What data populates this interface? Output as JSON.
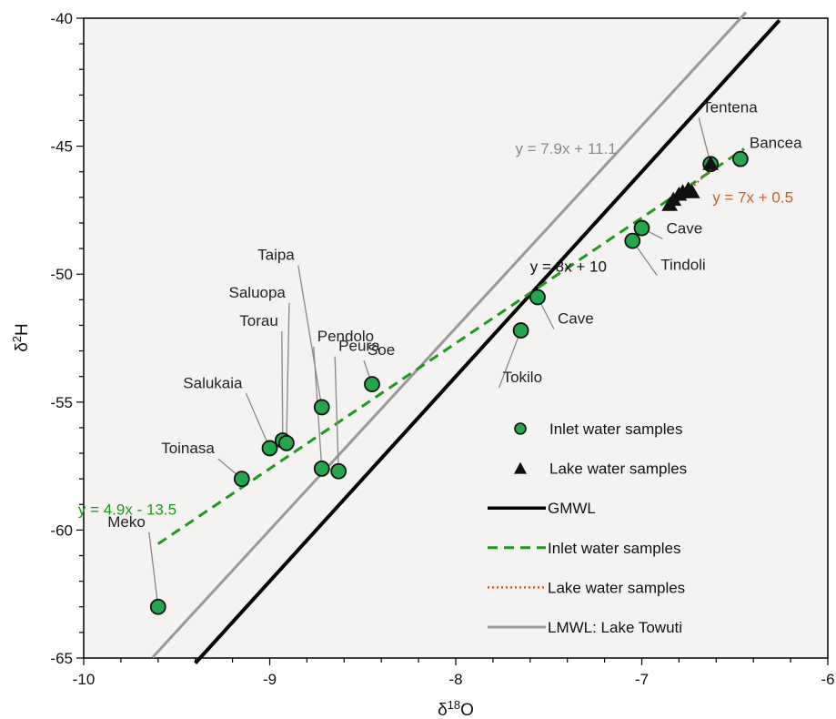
{
  "chart_data": {
    "type": "scatter",
    "xlabel": "δ18O",
    "ylabel": "δ2H",
    "xlim": [
      -10,
      -6
    ],
    "ylim": [
      -65,
      -40
    ],
    "xticks": [
      -10,
      -9,
      -8,
      -7,
      -6
    ],
    "yticks": [
      -65,
      -60,
      -55,
      -50,
      -45,
      -40
    ],
    "grid": false,
    "legend_position": "bottom-right",
    "inlet_points": [
      {
        "label": "Meko",
        "x": -9.6,
        "y": -63.0
      },
      {
        "label": "Toinasa",
        "x": -9.15,
        "y": -58.0
      },
      {
        "label": "Salukaia",
        "x": -9.0,
        "y": -56.8
      },
      {
        "label": "Torau",
        "x": -8.93,
        "y": -56.5
      },
      {
        "label": "Saluopa",
        "x": -8.91,
        "y": -56.6
      },
      {
        "label": "Taipa",
        "x": -8.72,
        "y": -55.2
      },
      {
        "label": "Pendolo",
        "x": -8.72,
        "y": -57.6
      },
      {
        "label": "Peura",
        "x": -8.63,
        "y": -57.7
      },
      {
        "label": "Soe",
        "x": -8.45,
        "y": -54.3
      },
      {
        "label": "Tokilo",
        "x": -7.65,
        "y": -52.2
      },
      {
        "label": "Cave",
        "x": -7.56,
        "y": -50.9
      },
      {
        "label": "Tindoli",
        "x": -7.05,
        "y": -48.7
      },
      {
        "label": "Cave",
        "x": -7.0,
        "y": -48.2
      },
      {
        "label": "Tentena",
        "x": -6.63,
        "y": -45.7
      },
      {
        "label": "Bancea",
        "x": -6.47,
        "y": -45.5
      }
    ],
    "lake_points": [
      {
        "x": -6.85,
        "y": -47.3
      },
      {
        "x": -6.83,
        "y": -47.1
      },
      {
        "x": -6.8,
        "y": -46.9
      },
      {
        "x": -6.78,
        "y": -46.8
      },
      {
        "x": -6.75,
        "y": -46.7
      },
      {
        "x": -6.73,
        "y": -46.8
      },
      {
        "x": -6.63,
        "y": -45.7
      }
    ],
    "lines": [
      {
        "name": "GMWL",
        "slope": 8,
        "intercept": 10,
        "x_range": [
          -9.4,
          -6.26
        ],
        "style": "solid",
        "color": "#000000",
        "equation": "y = 8x + 10"
      },
      {
        "name": "Inlet water samples",
        "slope": 4.9,
        "intercept": -13.5,
        "x_range": [
          -9.6,
          -6.45
        ],
        "style": "dashed",
        "color": "#1a9a1a",
        "equation": "y = 4.9x - 13.5"
      },
      {
        "name": "Lake water samples",
        "slope": 7,
        "intercept": 0.5,
        "x_range": [
          -6.86,
          -6.6
        ],
        "style": "dotted",
        "color": "#c0622a",
        "equation": "y = 7x + 0.5"
      },
      {
        "name": "LMWL: Lake Towuti",
        "slope": 7.9,
        "intercept": 11.1,
        "x_range": [
          -9.63,
          -6.44
        ],
        "style": "solid",
        "color": "#9a9a9a",
        "equation": "y = 7.9x + 11.1"
      }
    ],
    "legend": [
      {
        "label": "Inlet water samples",
        "kind": "circle"
      },
      {
        "label": "Lake water samples",
        "kind": "triangle"
      },
      {
        "label": "GMWL",
        "kind": "line-solid-black"
      },
      {
        "label": "Inlet water samples",
        "kind": "line-dashed-green"
      },
      {
        "label": "Lake water samples",
        "kind": "line-dotted-orange"
      },
      {
        "label": "LMWL: Lake Towuti",
        "kind": "line-solid-gray"
      }
    ],
    "colors": {
      "plot_background": "#f5f3f1",
      "marker_fill": "#22a84a",
      "marker_edge": "#111111",
      "label_text": "#222222",
      "leader_line": "#888888"
    }
  }
}
